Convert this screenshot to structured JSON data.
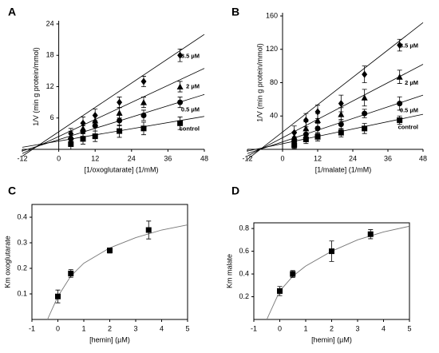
{
  "chart_data": [
    {
      "type": "scatter",
      "panel": "A",
      "frame": "origin",
      "x_label": "[1/oxoglutarate] (1/mM)",
      "y_label": "1/V (min g protein/mmol)",
      "xlim": [
        -12,
        48
      ],
      "ylim": [
        0,
        24
      ],
      "xticks": [
        -12,
        0,
        12,
        24,
        36,
        48
      ],
      "yticks": [
        6,
        12,
        18,
        24
      ],
      "x": [
        4,
        8,
        12,
        20,
        28,
        40
      ],
      "series": [
        {
          "name": "control",
          "marker": "square",
          "color": "#000000",
          "values": [
            1,
            2,
            2.5,
            3.5,
            4,
            5
          ],
          "errors": [
            1,
            1,
            1,
            1.2,
            1.2,
            1.2
          ],
          "fit": [
            0.4,
            6.3
          ]
        },
        {
          "name": "0.5 µM",
          "marker": "circle",
          "color": "#000000",
          "values": [
            2,
            3.5,
            4.5,
            5.5,
            6.5,
            9
          ],
          "errors": [
            1,
            1,
            1,
            1,
            1,
            1
          ],
          "fit": [
            -0.3,
            10.5
          ]
        },
        {
          "name": "2 µM",
          "marker": "triangle",
          "color": "#000000",
          "values": [
            2.5,
            4,
            5.5,
            7,
            9,
            12
          ],
          "errors": [
            1,
            1,
            1,
            1,
            1,
            1
          ],
          "fit": [
            -0.8,
            15.5
          ]
        },
        {
          "name": "3.5 µM",
          "marker": "diamond",
          "color": "#000000",
          "values": [
            3,
            5,
            6.5,
            9,
            13,
            18
          ],
          "errors": [
            1,
            1.2,
            1.2,
            1,
            1,
            1.2
          ],
          "fit": [
            -1.3,
            22
          ]
        }
      ]
    },
    {
      "type": "scatter",
      "panel": "B",
      "frame": "origin",
      "x_label": "[1/malate] (1/mM)",
      "y_label": "1/V (min g protein/mmol)",
      "xlim": [
        -12,
        48
      ],
      "ylim": [
        0,
        160
      ],
      "xticks": [
        -12,
        0,
        12,
        24,
        36,
        48
      ],
      "yticks": [
        40,
        80,
        120,
        160
      ],
      "x": [
        4,
        8,
        12,
        20,
        28,
        40
      ],
      "series": [
        {
          "name": "control",
          "marker": "square",
          "color": "#000000",
          "values": [
            5,
            12,
            15,
            20,
            25,
            35
          ],
          "errors": [
            4,
            5,
            5,
            5,
            6,
            5
          ],
          "fit": [
            -2,
            42
          ]
        },
        {
          "name": "0.5 µM",
          "marker": "circle",
          "color": "#000000",
          "values": [
            10,
            18,
            25,
            30,
            43,
            55
          ],
          "errors": [
            5,
            6,
            6,
            6,
            5,
            8
          ],
          "fit": [
            -5,
            65
          ]
        },
        {
          "name": "2 µM",
          "marker": "triangle",
          "color": "#000000",
          "values": [
            15,
            25,
            35,
            42,
            62,
            87
          ],
          "errors": [
            6,
            8,
            8,
            8,
            10,
            8
          ],
          "fit": [
            -8,
            102
          ]
        },
        {
          "name": "3.5 µM",
          "marker": "diamond",
          "color": "#000000",
          "values": [
            20,
            35,
            45,
            55,
            90,
            125
          ],
          "errors": [
            8,
            8,
            8,
            10,
            10,
            7
          ],
          "fit": [
            -12,
            152
          ]
        }
      ]
    },
    {
      "type": "curve",
      "panel": "C",
      "frame": "box",
      "x_label": "[hemin] (µM)",
      "y_label": "Km oxoglutarate",
      "xlim": [
        -1,
        5
      ],
      "ylim": [
        0,
        0.45
      ],
      "xticks": [
        -1,
        0,
        1,
        2,
        3,
        4,
        5
      ],
      "yticks": [
        0.1,
        0.2,
        0.3,
        0.4
      ],
      "x": [
        0,
        0.5,
        2,
        3.5
      ],
      "values": [
        0.09,
        0.18,
        0.27,
        0.35
      ],
      "errors": [
        0.025,
        0.015,
        0.01,
        0.035
      ],
      "color": "#000000",
      "curve_x": [
        -0.4,
        0,
        0.5,
        1,
        2,
        3,
        4,
        5
      ],
      "curve_y": [
        0,
        0.09,
        0.17,
        0.22,
        0.28,
        0.32,
        0.35,
        0.37
      ]
    },
    {
      "type": "curve",
      "panel": "D",
      "frame": "box",
      "x_label": "[hemin] (µM)",
      "y_label": "Km malate",
      "xlim": [
        -1,
        5
      ],
      "ylim": [
        0,
        0.85
      ],
      "xticks": [
        -1,
        0,
        1,
        2,
        3,
        4,
        5
      ],
      "yticks": [
        0.2,
        0.4,
        0.6,
        0.8
      ],
      "x": [
        0,
        0.5,
        2,
        3.5
      ],
      "values": [
        0.25,
        0.4,
        0.6,
        0.75
      ],
      "errors": [
        0.04,
        0.03,
        0.09,
        0.04
      ],
      "color": "#000000",
      "curve_x": [
        -0.5,
        0,
        0.5,
        1,
        2,
        3,
        4,
        5
      ],
      "curve_y": [
        0,
        0.25,
        0.38,
        0.47,
        0.6,
        0.7,
        0.77,
        0.82
      ]
    }
  ]
}
